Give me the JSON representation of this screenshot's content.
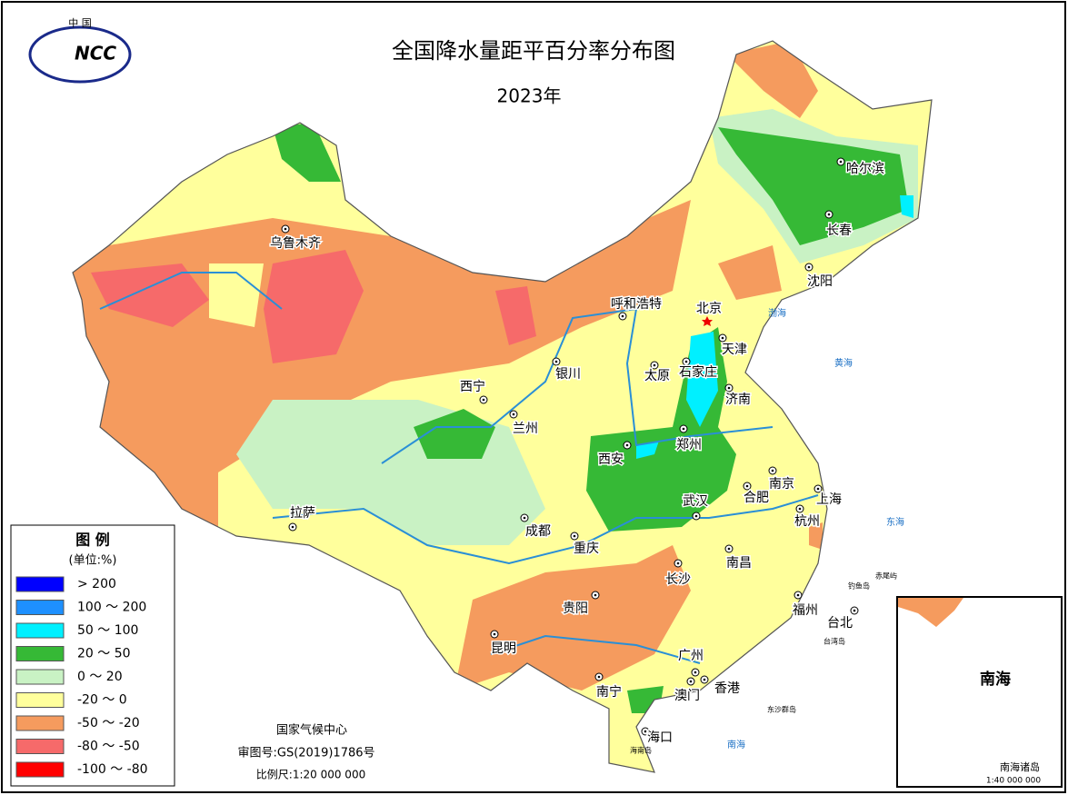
{
  "header": {
    "logo_top": "中 国",
    "logo": "NCC",
    "title": "全国降水量距平百分率分布图",
    "subtitle": "2023年"
  },
  "legend": {
    "title": "图 例",
    "unit": "(单位:%)",
    "items": [
      {
        "label": "> 200",
        "color": "#0000ff"
      },
      {
        "label": "100 ～ 200",
        "color": "#1e90ff"
      },
      {
        "label": "50 ～ 100",
        "color": "#00f0ff"
      },
      {
        "label": "20 ～ 50",
        "color": "#36b936"
      },
      {
        "label": "0 ～ 20",
        "color": "#c9f2c4"
      },
      {
        "label": "-20 ～ 0",
        "color": "#ffff9c"
      },
      {
        "label": "-50 ～ -20",
        "color": "#f59b5e"
      },
      {
        "label": "-80 ～ -50",
        "color": "#f66a6a"
      },
      {
        "label": "-100 ～ -80",
        "color": "#ff0000"
      }
    ]
  },
  "cities": [
    "乌鲁木齐",
    "呼和浩特",
    "北京",
    "天津",
    "石家庄",
    "太原",
    "济南",
    "西宁",
    "兰州",
    "银川",
    "西安",
    "郑州",
    "南京",
    "合肥",
    "上海",
    "杭州",
    "武汉",
    "拉萨",
    "成都",
    "重庆",
    "长沙",
    "南昌",
    "贵阳",
    "昆明",
    "福州",
    "台北",
    "广州",
    "南宁",
    "澳门",
    "香港",
    "海口",
    "哈尔滨",
    "长春",
    "沈阳"
  ],
  "seas": [
    "渤海",
    "黄海",
    "东海",
    "南海",
    "台湾岛",
    "海南岛",
    "钓鱼岛",
    "赤尾屿",
    "东沙群岛"
  ],
  "credits": {
    "org": "国家气候中心",
    "approval": "审图号:GS(2019)1786号",
    "scale": "比例尺:1:20 000 000"
  },
  "inset": {
    "sea": "南海",
    "islands": "南海诸岛",
    "scale": "1:40 000 000"
  }
}
